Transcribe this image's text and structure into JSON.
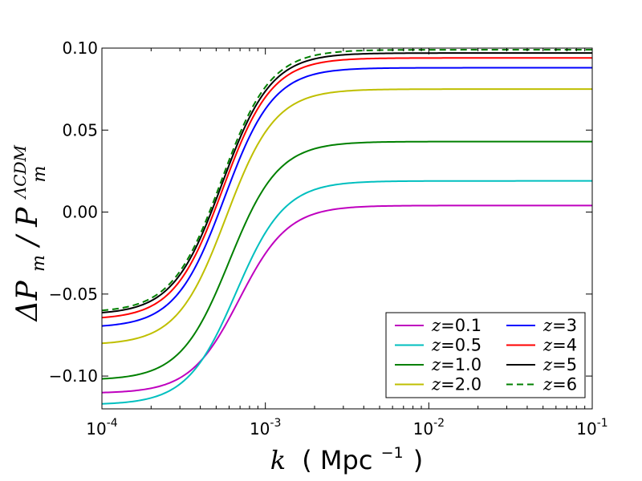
{
  "chart_data": {
    "type": "line",
    "x_scale": "log",
    "xlim": [
      0.0001,
      0.1
    ],
    "ylim": [
      -0.12,
      0.1
    ],
    "xlabel": {
      "var": "k",
      "open": "(",
      "unit": "Mpc",
      "unit_exp": "−1",
      "close": ")"
    },
    "ylabel": {
      "num": "ΔP",
      "num_sub": "m",
      "slash": "/",
      "den": "P",
      "den_sub": "m",
      "den_sup": "ΛCDM"
    },
    "x_ticks": [
      {
        "value": 0.0001,
        "base": "10",
        "exp": "-4"
      },
      {
        "value": 0.001,
        "base": "10",
        "exp": "-3"
      },
      {
        "value": 0.01,
        "base": "10",
        "exp": "-2"
      },
      {
        "value": 0.1,
        "base": "10",
        "exp": "-1"
      }
    ],
    "y_ticks": [
      {
        "value": 0.1,
        "label": "0.10"
      },
      {
        "value": 0.05,
        "label": "0.05"
      },
      {
        "value": 0.0,
        "label": "0.00"
      },
      {
        "value": -0.05,
        "label": "−0.05"
      },
      {
        "value": -0.1,
        "label": "−0.10"
      }
    ],
    "model": {
      "form": "sigmoid in log10(k)",
      "center_log10_k": -3.22,
      "width": 0.15
    },
    "legend": {
      "location": "lower-right",
      "columns": 2
    },
    "series": [
      {
        "name": "z=0.1",
        "label_var": "z",
        "label_eq": "=",
        "label_val": "0.1",
        "color": "#bf00bf",
        "dash": "solid",
        "low": -0.1105,
        "high": 0.004,
        "center_shift": 0.06
      },
      {
        "name": "z=0.5",
        "label_var": "z",
        "label_eq": "=",
        "label_val": "0.5",
        "color": "#00bfbf",
        "dash": "solid",
        "low": -0.1175,
        "high": 0.019,
        "center_shift": 0.04
      },
      {
        "name": "z=1.0",
        "label_var": "z",
        "label_eq": "=",
        "label_val": "1.0",
        "color": "#008000",
        "dash": "solid",
        "low": -0.1025,
        "high": 0.043,
        "center_shift": 0.0
      },
      {
        "name": "z=2.0",
        "label_var": "z",
        "label_eq": "=",
        "label_val": "2.0",
        "color": "#bfbf00",
        "dash": "solid",
        "low": -0.081,
        "high": 0.075,
        "center_shift": -0.02
      },
      {
        "name": "z=3",
        "label_var": "z",
        "label_eq": "=",
        "label_val": "3",
        "color": "#0000ff",
        "dash": "solid",
        "low": -0.0705,
        "high": 0.088,
        "center_shift": -0.03
      },
      {
        "name": "z=4",
        "label_var": "z",
        "label_eq": "=",
        "label_val": "4",
        "color": "#ff0000",
        "dash": "solid",
        "low": -0.0655,
        "high": 0.094,
        "center_shift": -0.04
      },
      {
        "name": "z=5",
        "label_var": "z",
        "label_eq": "=",
        "label_val": "5",
        "color": "#000000",
        "dash": "solid",
        "low": -0.0625,
        "high": 0.097,
        "center_shift": -0.045
      },
      {
        "name": "z=6",
        "label_var": "z",
        "label_eq": "=",
        "label_val": "6",
        "color": "#008000",
        "dash": "dashed",
        "low": -0.0612,
        "high": 0.099,
        "center_shift": -0.05
      }
    ]
  }
}
